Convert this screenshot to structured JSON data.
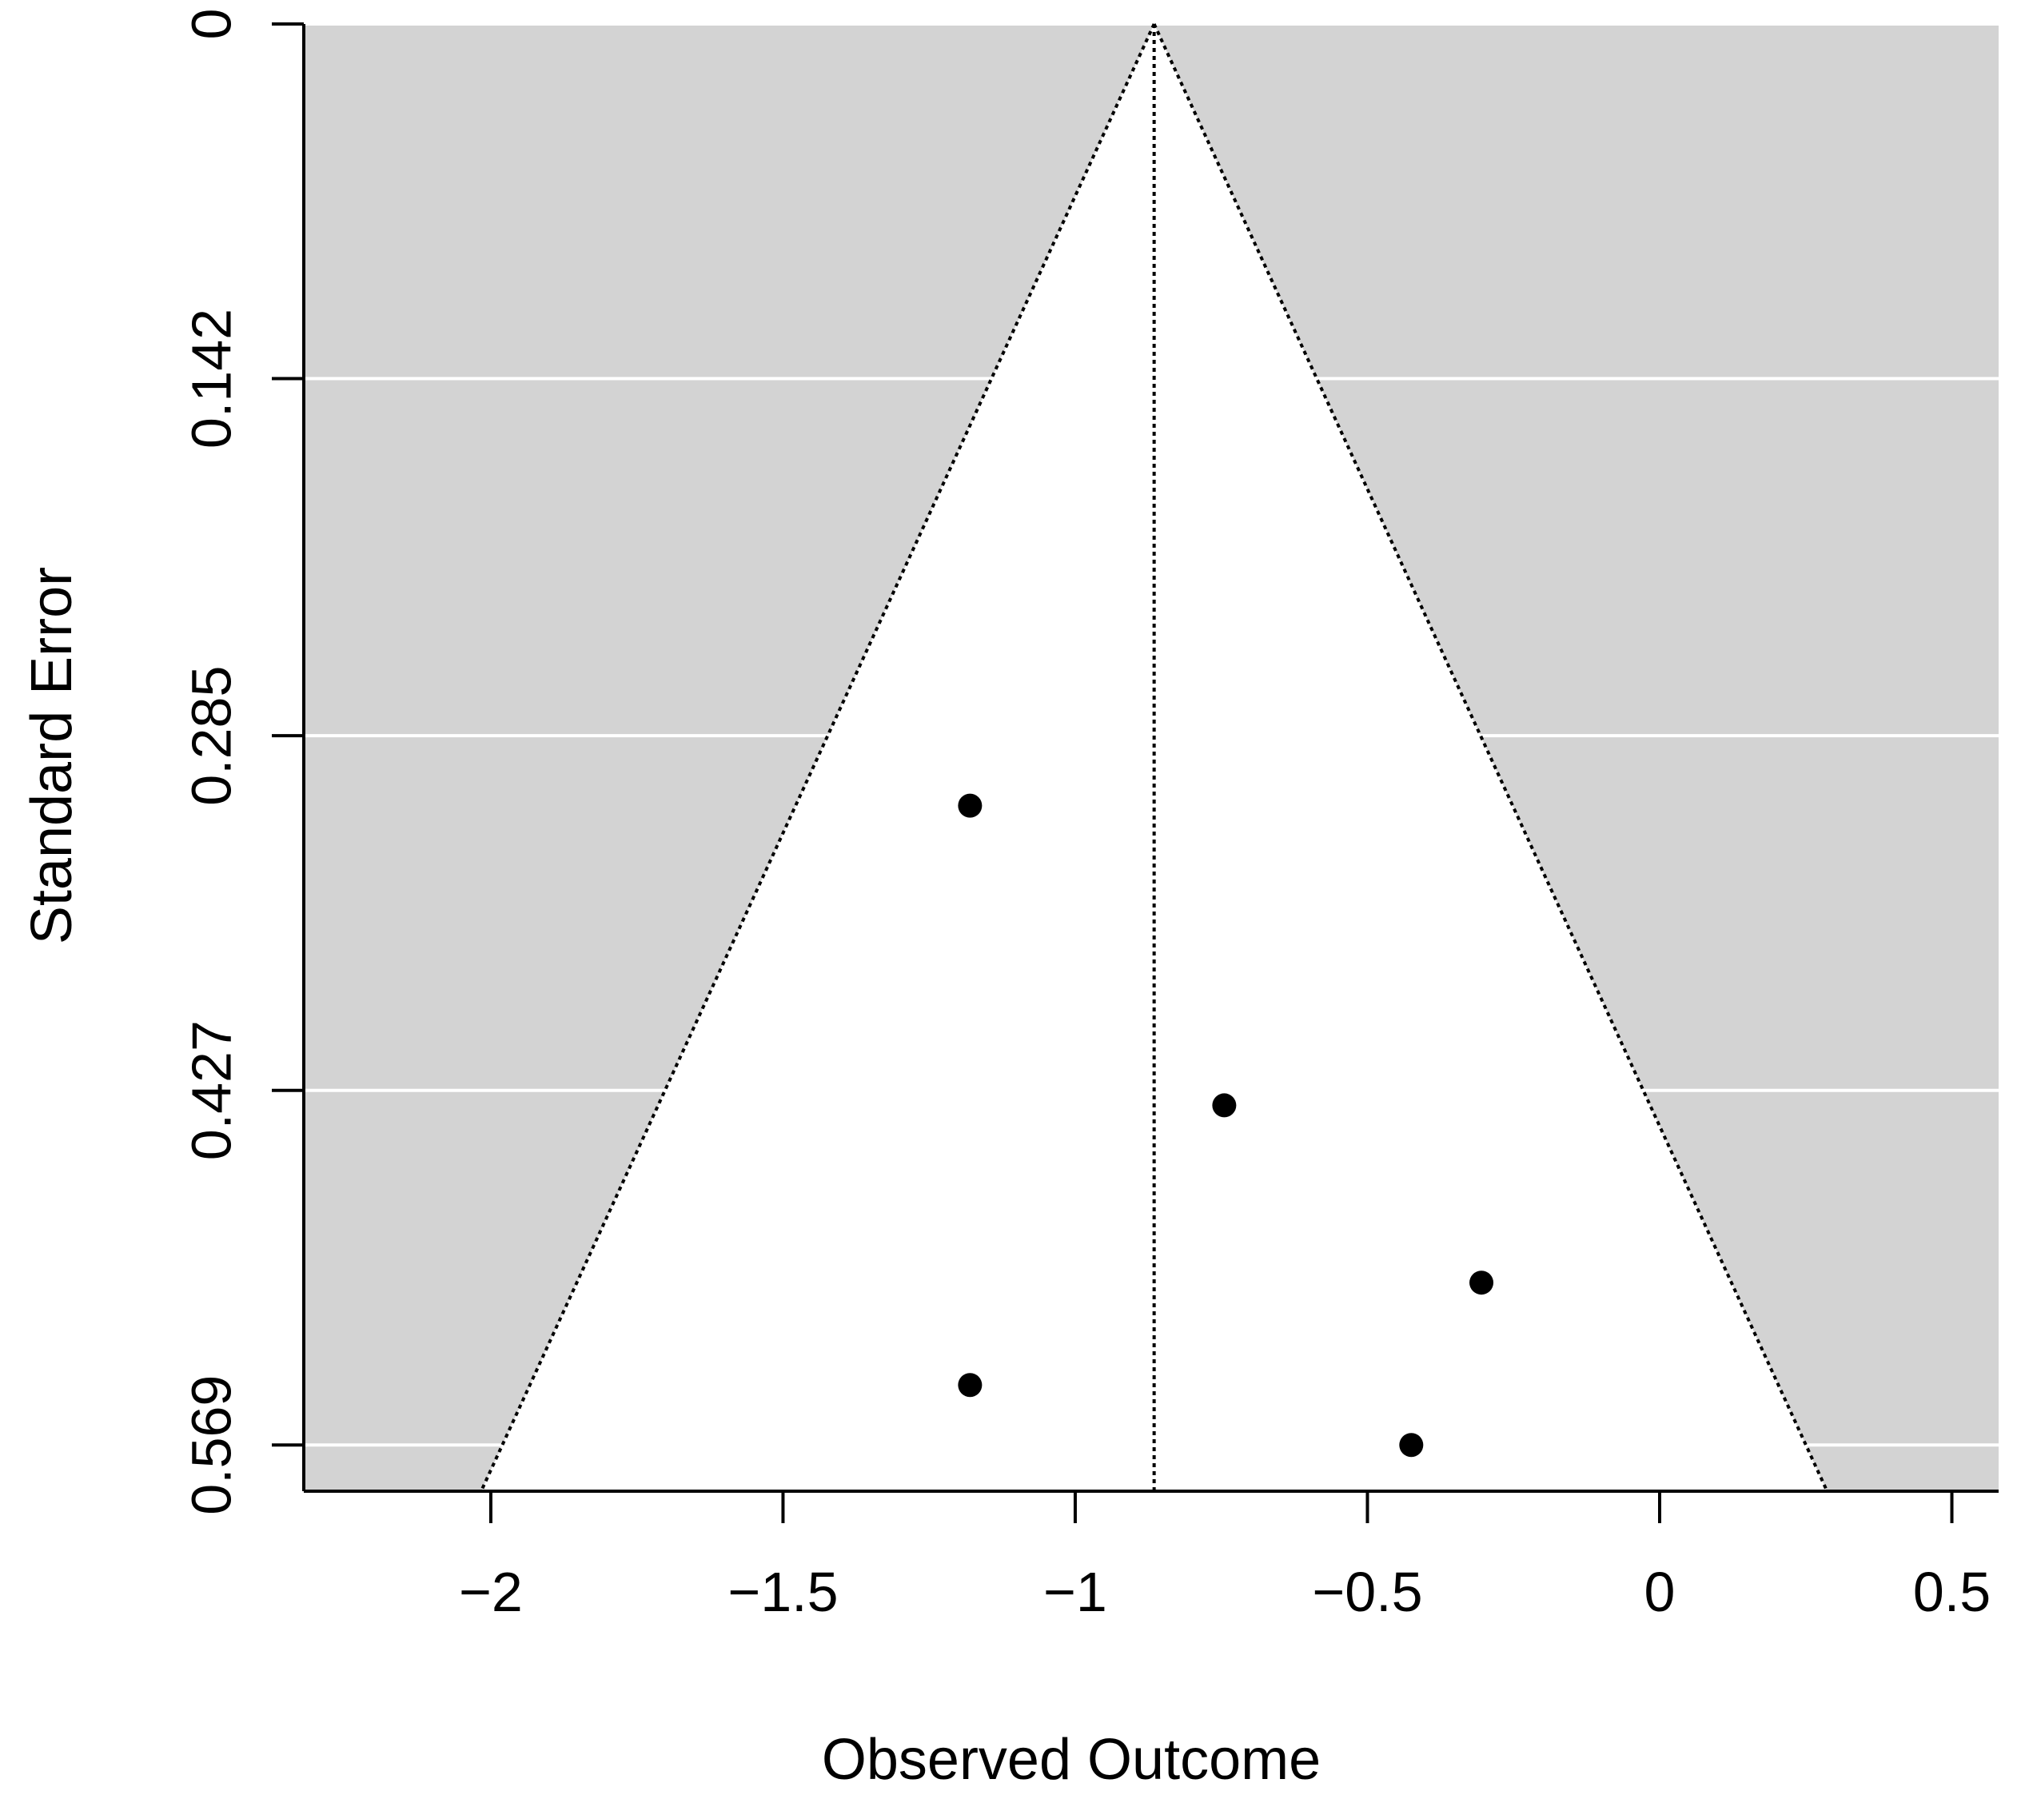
{
  "chart_data": {
    "type": "scatter",
    "subtype": "funnel",
    "xlabel": "Observed Outcome",
    "ylabel": "Standard Error",
    "xlim": [
      -2.32,
      0.58
    ],
    "ylim": [
      0.0,
      0.5875
    ],
    "y_inverted": true,
    "x_ticks": [
      -2,
      -1.5,
      -1,
      -0.5,
      0,
      0.5
    ],
    "x_tick_labels": [
      "−2",
      "−1.5",
      "−1",
      "−0.5",
      "0",
      "0.5"
    ],
    "y_ticks": [
      0,
      0.142,
      0.285,
      0.427,
      0.569
    ],
    "y_tick_labels": [
      "0",
      "0.142",
      "0.285",
      "0.427",
      "0.569"
    ],
    "horizontal_grid": true,
    "grid_color": "#ffffff",
    "background_color": "#d3d3d3",
    "funnel_fill_color": "#ffffff",
    "pooled_estimate": -0.865,
    "funnel_multiplier": 1.96,
    "points": [
      {
        "x": -1.18,
        "y": 0.313
      },
      {
        "x": -0.745,
        "y": 0.433
      },
      {
        "x": -0.305,
        "y": 0.504
      },
      {
        "x": -1.18,
        "y": 0.545
      },
      {
        "x": -0.425,
        "y": 0.569
      }
    ],
    "point_color": "#000000"
  }
}
